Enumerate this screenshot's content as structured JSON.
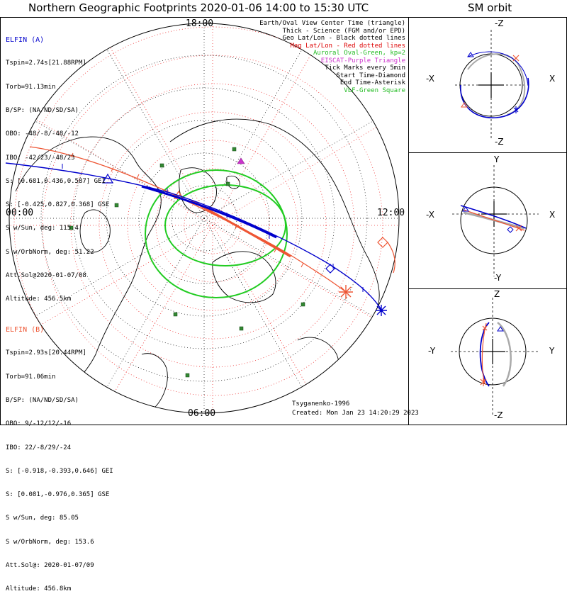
{
  "title": "Northern Geographic Footprints 2020-01-06 14:00 to 15:30 UTC",
  "orbit_title": "SM orbit",
  "elfin_a": {
    "name": "ELFIN (A)",
    "color": "#0000cc",
    "lines": [
      "Tspin=2.74s[21.88RPM]",
      "Torb=91.13min",
      "B/SP: (NA/ND/SD/SA)",
      "OBO: -48/-8/-48/-12",
      "IBO: -42/23/-48/23",
      "S: [0.681,0.436,0.587] GEI",
      "S: [-0.425,0.827,0.368] GSE",
      "S w/Sun, deg: 115.4",
      "S w/OrbNorm, deg: 51.22",
      "Att.Sol@2020-01-07/08",
      "Altitude: 456.5km"
    ]
  },
  "elfin_b": {
    "name": "ELFIN (B)",
    "color": "#ee5533",
    "lines": [
      "Tspin=2.93s[20.44RPM]",
      "Torb=91.06min",
      "B/SP: (NA/ND/SD/SA)",
      "OBO: 9/-12/12/-16",
      "IBO: 22/-8/29/-24",
      "S: [-0.918,-0.393,0.646] GEI",
      "S: [0.081,-0.976,0.365] GSE",
      "S w/Sun, deg: 85.05",
      "S w/OrbNorm, deg: 153.6",
      "Att.Sol@: 2020-01-07/09",
      "Altitude: 456.8km"
    ]
  },
  "legend": [
    {
      "text": "Earth/Oval View Center Time (triangle)",
      "color": "#000000"
    },
    {
      "text": "Thick - Science (FGM and/or EPD)",
      "color": "#000000"
    },
    {
      "text": "Geo Lat/Lon - Black dotted lines",
      "color": "#000000"
    },
    {
      "text": "Mag Lat/Lon - Red dotted lines",
      "color": "#dd0000"
    },
    {
      "text": "Auroral Oval-Green, kp=2",
      "color": "#22bb22"
    },
    {
      "text": "EISCAT-Purple Triangle",
      "color": "#cc33cc"
    },
    {
      "text": "Tick Marks every 5min",
      "color": "#000000"
    },
    {
      "text": "Start Time-Diamond",
      "color": "#000000"
    },
    {
      "text": "End Time-Asterisk",
      "color": "#000000"
    },
    {
      "text": "VLF-Green Square",
      "color": "#22bb22"
    }
  ],
  "hour_labels": {
    "top": "18:00",
    "left": "00:00",
    "right": "12:00",
    "bottom": "06:00"
  },
  "credits": [
    "Tsyganenko-1996",
    "Created: Mon Jan 23 14:20:29 2023"
  ],
  "orbit_panels": [
    {
      "name": "xz",
      "top": "-Z",
      "bottom": "-Z",
      "left": "-X",
      "right": "X"
    },
    {
      "name": "xy",
      "top": "Y",
      "bottom": "-Y",
      "left": "-X",
      "right": "X"
    },
    {
      "name": "yz",
      "top": "Z",
      "bottom": "-Z",
      "left": "-Y",
      "right": "Y"
    }
  ],
  "colors": {
    "elfin_a": "#0000cc",
    "elfin_b": "#ee5533",
    "oval": "#22cc22",
    "mag_grid": "#ee3333",
    "geo_grid": "#000000",
    "eiscat": "#cc33cc",
    "vlf": "#338833"
  }
}
